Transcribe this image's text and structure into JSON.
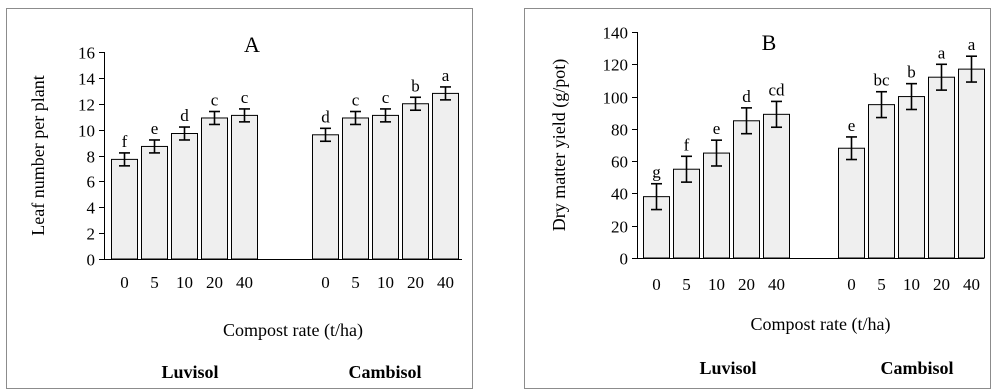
{
  "chart_data": [
    {
      "type": "bar",
      "panel": "A",
      "title": "A",
      "ylabel": "Leaf number per plant",
      "xlabel": "Compost rate (t/ha)",
      "ylim": [
        0,
        16
      ],
      "yticks": [
        0,
        2,
        4,
        6,
        8,
        10,
        12,
        14,
        16
      ],
      "categories": [
        "0",
        "5",
        "10",
        "20",
        "40"
      ],
      "groups": [
        {
          "name": "Luvisol",
          "values": [
            7.7,
            8.7,
            9.7,
            10.9,
            11.1
          ],
          "errors": [
            0.5,
            0.5,
            0.5,
            0.5,
            0.5
          ],
          "letters": [
            "f",
            "e",
            "d",
            "c",
            "c"
          ]
        },
        {
          "name": "Cambisol",
          "values": [
            9.6,
            10.9,
            11.1,
            12.0,
            12.8
          ],
          "errors": [
            0.5,
            0.5,
            0.5,
            0.5,
            0.5
          ],
          "letters": [
            "d",
            "c",
            "c",
            "b",
            "a"
          ]
        }
      ],
      "grid": false
    },
    {
      "type": "bar",
      "panel": "B",
      "title": "B",
      "ylabel": "Dry matter yield (g/pot)",
      "xlabel": "Compost rate (t/ha)",
      "ylim": [
        0,
        140
      ],
      "yticks": [
        0,
        20,
        40,
        60,
        80,
        100,
        120,
        140
      ],
      "categories": [
        "0",
        "5",
        "10",
        "20",
        "40"
      ],
      "groups": [
        {
          "name": "Luvisol",
          "values": [
            38,
            55,
            65,
            85,
            89
          ],
          "errors": [
            8,
            8,
            8,
            8,
            8
          ],
          "letters": [
            "g",
            "f",
            "e",
            "d",
            "cd"
          ]
        },
        {
          "name": "Cambisol",
          "values": [
            68,
            95,
            100,
            112,
            117
          ],
          "errors": [
            7,
            8,
            8,
            8,
            8
          ],
          "letters": [
            "e",
            "bc",
            "b",
            "a",
            "a"
          ]
        }
      ],
      "grid": false
    }
  ]
}
